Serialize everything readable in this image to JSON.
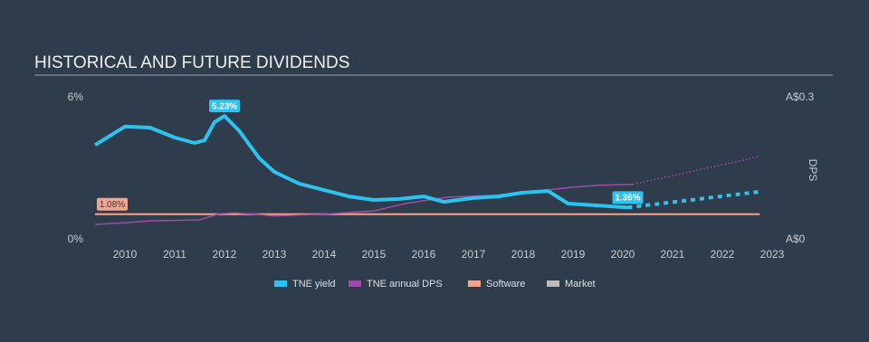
{
  "chart_data": {
    "type": "line",
    "title": "HISTORICAL AND FUTURE DIVIDENDS",
    "xlim": [
      2009.4,
      2023
    ],
    "xticks": [
      2010,
      2011,
      2012,
      2013,
      2014,
      2015,
      2016,
      2017,
      2018,
      2019,
      2020,
      2021,
      2022,
      2023
    ],
    "ylim": [
      0,
      6
    ],
    "yticks": [
      {
        "value": 0,
        "label": "0%"
      },
      {
        "value": 6,
        "label": "6%"
      }
    ],
    "y2lim": [
      0,
      0.3
    ],
    "y2ticks": [
      {
        "value": 0,
        "label": "A$0"
      },
      {
        "value": 0.3,
        "label": "A$0.3"
      }
    ],
    "y2label": "DPS",
    "grid": false,
    "series": [
      {
        "name": "TNE yield",
        "color": "#2dc3f0",
        "x": [
          2009.4,
          2010.0,
          2010.5,
          2011.0,
          2011.4,
          2011.6,
          2011.8,
          2012.0,
          2012.3,
          2012.7,
          2013.0,
          2013.5,
          2014.0,
          2014.5,
          2015.0,
          2015.5,
          2016.0,
          2016.4,
          2017.0,
          2017.5,
          2018.0,
          2018.5,
          2018.9,
          2019.5,
          2020.1
        ],
        "values": [
          4.0,
          4.78,
          4.74,
          4.32,
          4.09,
          4.2,
          4.97,
          5.23,
          4.59,
          3.44,
          2.87,
          2.37,
          2.1,
          1.83,
          1.68,
          1.72,
          1.83,
          1.6,
          1.76,
          1.83,
          1.99,
          2.06,
          1.53,
          1.45,
          1.36
        ],
        "value_labels": [
          null,
          null,
          null,
          null,
          null,
          null,
          null,
          "5.23%",
          null,
          null,
          null,
          null,
          null,
          null,
          null,
          null,
          null,
          null,
          null,
          null,
          null,
          null,
          null,
          null,
          "1.36%"
        ],
        "forecast_x": [
          2020.1,
          2022.75
        ],
        "forecast_values": [
          1.36,
          2.03
        ]
      },
      {
        "name": "TNE annual DPS",
        "color": "#a04aa8",
        "axis": "y2",
        "x": [
          2009.4,
          2010.0,
          2010.5,
          2011.5,
          2011.9,
          2012.2,
          2012.6,
          2013.0,
          2014.0,
          2015.0,
          2015.7,
          2016.5,
          2017.5,
          2018.3,
          2019.0,
          2019.5,
          2020.2
        ],
        "values": [
          0.0325,
          0.036,
          0.04,
          0.042,
          0.055,
          0.057,
          0.054,
          0.05,
          0.054,
          0.061,
          0.078,
          0.09,
          0.094,
          0.103,
          0.111,
          0.115,
          0.117
        ],
        "forecast_x": [
          2020.2,
          2022.75
        ],
        "forecast_values": [
          0.117,
          0.176
        ]
      },
      {
        "name": "Software",
        "color": "#f4a38c",
        "x": [
          2009.4,
          2022.75
        ],
        "values": [
          1.08,
          1.08
        ],
        "value_labels": [
          "1.08%",
          null
        ]
      },
      {
        "name": "Market",
        "color": "#bbbbbb",
        "x": [],
        "values": []
      }
    ]
  }
}
